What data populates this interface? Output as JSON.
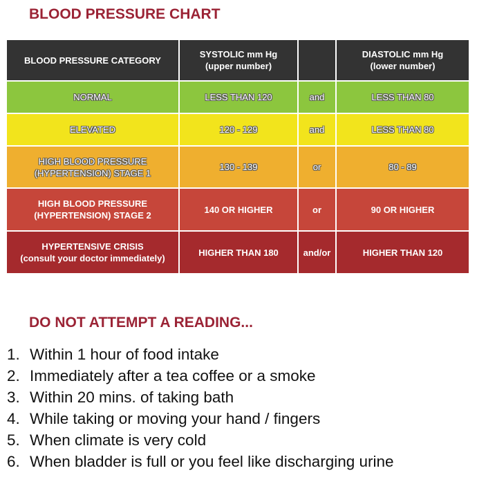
{
  "header": {
    "title": "BLOOD PRESSURE CHART"
  },
  "table": {
    "header": [
      [
        "BLOOD PRESSURE CATEGORY"
      ],
      [
        "SYSTOLIC mm Hg",
        "(upper number)"
      ],
      [
        "DIASTOLIC mm Hg",
        "(lower number)"
      ]
    ],
    "rows": [
      {
        "category": [
          "NORMAL"
        ],
        "systolic": "LESS THAN 120",
        "joiner": "and",
        "diastolic": "LESS THAN 80"
      },
      {
        "category": [
          "ELEVATED"
        ],
        "systolic": "120 - 129",
        "joiner": "and",
        "diastolic": "LESS THAN 80"
      },
      {
        "category": [
          "HIGH BLOOD PRESSURE",
          "(HYPERTENSION) STAGE 1"
        ],
        "systolic": "130 - 139",
        "joiner": "or",
        "diastolic": "80 - 89"
      },
      {
        "category": [
          "HIGH BLOOD PRESSURE",
          "(HYPERTENSION) STAGE 2"
        ],
        "systolic": "140 OR HIGHER",
        "joiner": "or",
        "diastolic": "90 OR HIGHER"
      },
      {
        "category": [
          "HYPERTENSIVE CRISIS",
          "(consult your doctor immediately)"
        ],
        "systolic": "HIGHER  THAN 180",
        "joiner": "and/or",
        "diastolic": "HIGHER THAN 120"
      }
    ]
  },
  "section": {
    "title": "DO NOT ATTEMPT A READING...",
    "items": [
      {
        "number": "1.",
        "text": "Within 1 hour of food intake"
      },
      {
        "number": "2.",
        "text": "Immediately after a tea coffee or a smoke"
      },
      {
        "number": "3.",
        "text": "Within 20 mins. of  taking bath"
      },
      {
        "number": "4.",
        "text": "While taking or moving your hand / fingers"
      },
      {
        "number": "5.",
        "text": "When climate is very cold"
      },
      {
        "number": "6.",
        "text": "When bladder is full or you feel like discharging urine"
      }
    ]
  }
}
